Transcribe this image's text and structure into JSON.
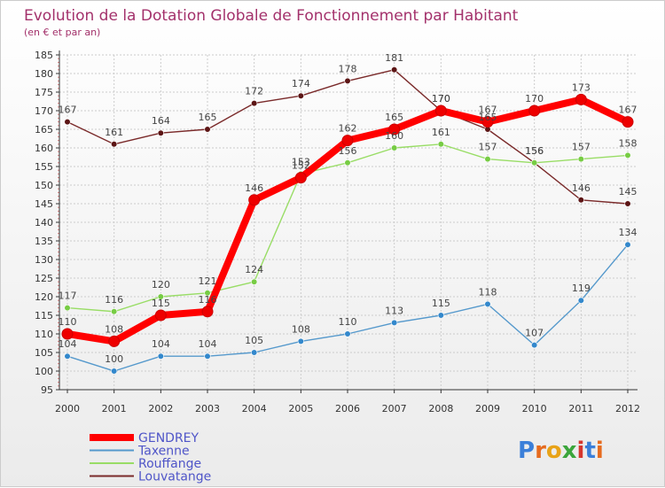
{
  "chart_data": {
    "type": "line",
    "title": "Evolution de la Dotation Globale de Fonctionnement par Habitant",
    "subtitle": "(en € et par an)",
    "xlabel": "",
    "ylabel": "",
    "ylim": [
      95,
      185
    ],
    "yticks": [
      95,
      100,
      105,
      110,
      115,
      120,
      125,
      130,
      135,
      140,
      145,
      150,
      155,
      160,
      165,
      170,
      175,
      180,
      185
    ],
    "categories": [
      "2000",
      "2001",
      "2002",
      "2003",
      "2004",
      "2005",
      "2006",
      "2007",
      "2008",
      "2009",
      "2010",
      "2011",
      "2012"
    ],
    "grid": true,
    "legend_position": "bottom-left",
    "series": [
      {
        "name": "Louvatange",
        "color": "#7a2a2a",
        "marker": "#5c1515",
        "values": [
          167,
          161,
          164,
          165,
          172,
          174,
          178,
          181,
          170,
          165,
          156,
          146,
          145
        ]
      },
      {
        "name": "Rouffange",
        "color": "#99dd66",
        "marker": "#77cc44",
        "values": [
          117,
          116,
          120,
          121,
          124,
          153,
          156,
          160,
          161,
          157,
          156,
          157,
          158
        ]
      },
      {
        "name": "Taxenne",
        "color": "#5599cc",
        "marker": "#3388cc",
        "values": [
          104,
          100,
          104,
          104,
          105,
          108,
          110,
          113,
          115,
          118,
          107,
          119,
          134
        ]
      },
      {
        "name": "GENDREY",
        "color": "#ff0000",
        "marker": "#ee0000",
        "values": [
          110,
          108,
          115,
          116,
          146,
          152,
          162,
          165,
          170,
          167,
          170,
          173,
          167
        ]
      }
    ]
  },
  "logo": {
    "text": "Proxiti"
  }
}
